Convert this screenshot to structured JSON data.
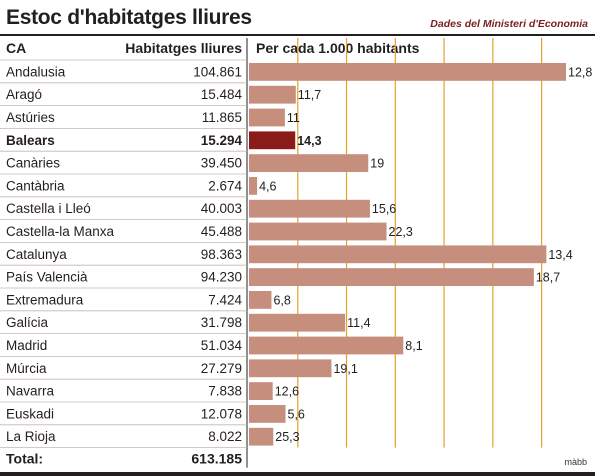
{
  "header": {
    "title": "Estoc d'habitatges lliures",
    "source": "Dades del Ministeri d'Economia"
  },
  "footer": {
    "credit": "màbb"
  },
  "colors": {
    "bar": "#c58e7d",
    "bar_highlight": "#8b1a1a",
    "grid": "#e2a32a",
    "stripe": "#f0e2d6",
    "row_line": "#c9b6a6"
  },
  "chart_data": {
    "type": "table",
    "title": "Estoc d'habitatges lliures",
    "columns": [
      "CA",
      "Habitatges lliures",
      "Per cada 1.000 habitants"
    ],
    "x_range": [
      0,
      13
    ],
    "grid_step": 2,
    "highlight": "Balears",
    "rows": [
      {
        "name": "Andalusia",
        "homes": "104.861",
        "per1000": 12.8,
        "label": "12,8"
      },
      {
        "name": "Aragó",
        "homes": "15.484",
        "per1000": 11.7,
        "label": "11,7"
      },
      {
        "name": "Astúries",
        "homes": "11.865",
        "per1000": 11,
        "label": "11"
      },
      {
        "name": "Balears",
        "homes": "15.294",
        "per1000": 14.3,
        "label": "14,3"
      },
      {
        "name": "Canàries",
        "homes": "39.450",
        "per1000": 19,
        "label": "19"
      },
      {
        "name": "Cantàbria",
        "homes": "2.674",
        "per1000": 4.6,
        "label": "4,6"
      },
      {
        "name": "Castella i Lleó",
        "homes": "40.003",
        "per1000": 15.6,
        "label": "15,6"
      },
      {
        "name": "Castella-la Manxa",
        "homes": "45.488",
        "per1000": 22.3,
        "label": "22,3"
      },
      {
        "name": "Catalunya",
        "homes": "98.363",
        "per1000": 13.4,
        "label": "13,4"
      },
      {
        "name": "País Valencià",
        "homes": "94.230",
        "per1000": 18.7,
        "label": "18,7"
      },
      {
        "name": "Extremadura",
        "homes": "7.424",
        "per1000": 6.8,
        "label": "6,8"
      },
      {
        "name": "Galícia",
        "homes": "31.798",
        "per1000": 11.4,
        "label": "11,4"
      },
      {
        "name": "Madrid",
        "homes": "51.034",
        "per1000": 8.1,
        "label": "8,1"
      },
      {
        "name": "Múrcia",
        "homes": "27.279",
        "per1000": 19.1,
        "label": "19,1"
      },
      {
        "name": "Navarra",
        "homes": "7.838",
        "per1000": 12.6,
        "label": "12,6"
      },
      {
        "name": "Euskadi",
        "homes": "12.078",
        "per1000": 5.6,
        "label": "5,6"
      },
      {
        "name": "La Rioja",
        "homes": "8.022",
        "per1000": 25.3,
        "label": "25,3"
      }
    ],
    "bar_values": [
      104861,
      15484,
      11865,
      15294,
      39450,
      2674,
      40003,
      45488,
      98363,
      94230,
      7424,
      31798,
      51034,
      27279,
      7838,
      12078,
      8022
    ],
    "total": {
      "label": "Total:",
      "homes": "613.185"
    }
  }
}
